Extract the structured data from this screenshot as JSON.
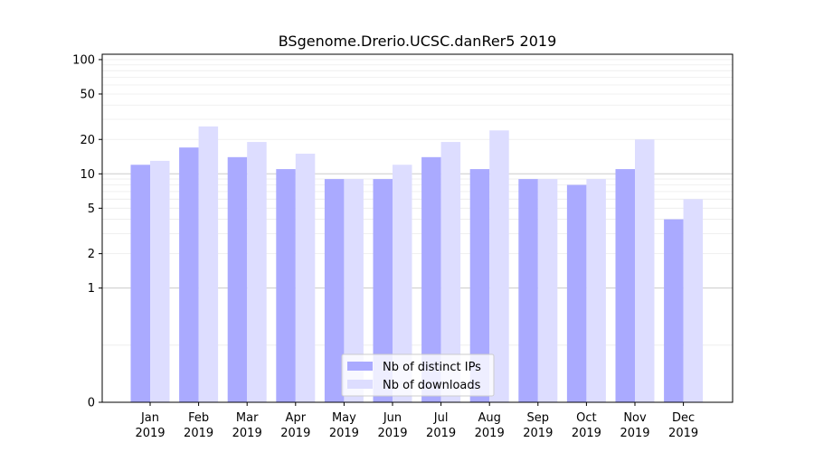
{
  "colors": {
    "ips": "#aaaaff",
    "downloads": "#ddddff",
    "grid_major": "#cccccc",
    "grid_minor": "#ececec"
  },
  "chart_data": {
    "type": "bar",
    "title": "BSgenome.Drerio.UCSC.danRer5 2019",
    "xlabel": "",
    "ylabel": "",
    "y_scale": "symlog",
    "ylim": [
      0,
      100
    ],
    "y_ticks": [
      {
        "value": 0,
        "label": "0"
      },
      {
        "value": 1,
        "label": "1"
      },
      {
        "value": 2,
        "label": "2"
      },
      {
        "value": 5,
        "label": "5"
      },
      {
        "value": 10,
        "label": "10"
      },
      {
        "value": 20,
        "label": "20"
      },
      {
        "value": 50,
        "label": "50"
      },
      {
        "value": 100,
        "label": "100"
      }
    ],
    "grid": true,
    "legend_position": "bottom-center",
    "categories": [
      {
        "month": "Jan",
        "year": "2019"
      },
      {
        "month": "Feb",
        "year": "2019"
      },
      {
        "month": "Mar",
        "year": "2019"
      },
      {
        "month": "Apr",
        "year": "2019"
      },
      {
        "month": "May",
        "year": "2019"
      },
      {
        "month": "Jun",
        "year": "2019"
      },
      {
        "month": "Jul",
        "year": "2019"
      },
      {
        "month": "Aug",
        "year": "2019"
      },
      {
        "month": "Sep",
        "year": "2019"
      },
      {
        "month": "Oct",
        "year": "2019"
      },
      {
        "month": "Nov",
        "year": "2019"
      },
      {
        "month": "Dec",
        "year": "2019"
      }
    ],
    "series": [
      {
        "name": "Nb of distinct IPs",
        "color": "#aaaaff",
        "values": [
          12,
          17,
          14,
          11,
          9,
          9,
          14,
          11,
          9,
          8,
          11,
          4
        ]
      },
      {
        "name": "Nb of downloads",
        "color": "#ddddff",
        "values": [
          13,
          26,
          19,
          15,
          9,
          12,
          19,
          24,
          9,
          9,
          20,
          6
        ]
      }
    ]
  }
}
